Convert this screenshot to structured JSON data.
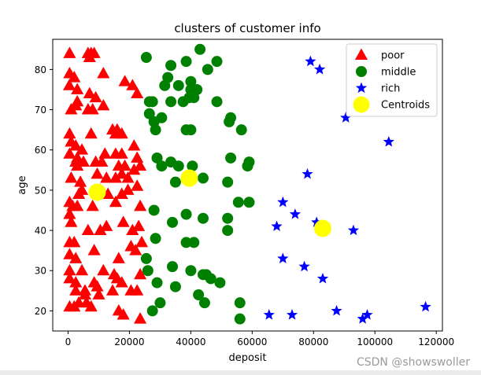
{
  "chart_data": {
    "type": "scatter",
    "title": "clusters of customer info",
    "xlabel": "deposit",
    "ylabel": "age",
    "xlim": [
      -5000,
      122000
    ],
    "ylim": [
      15,
      87.5
    ],
    "xticks": [
      0,
      20000,
      40000,
      60000,
      80000,
      100000,
      120000
    ],
    "yticks": [
      20,
      30,
      40,
      50,
      60,
      70,
      80
    ],
    "legend_position": "top-right",
    "grid": false,
    "series": [
      {
        "name": "poor",
        "color": "#ff0000",
        "marker": "triangle",
        "points": [
          [
            500,
            84
          ],
          [
            6500,
            84
          ],
          [
            7500,
            84
          ],
          [
            8500,
            84
          ],
          [
            7000,
            83
          ],
          [
            500,
            79
          ],
          [
            2000,
            78
          ],
          [
            11500,
            79
          ],
          [
            400,
            76
          ],
          [
            3000,
            75
          ],
          [
            7000,
            74
          ],
          [
            9000,
            73
          ],
          [
            3000,
            72
          ],
          [
            2500,
            71
          ],
          [
            1000,
            70
          ],
          [
            6500,
            70
          ],
          [
            8000,
            70
          ],
          [
            11500,
            71
          ],
          [
            18500,
            77
          ],
          [
            21000,
            76
          ],
          [
            22500,
            74
          ],
          [
            500,
            64
          ],
          [
            7500,
            64
          ],
          [
            14500,
            65
          ],
          [
            16000,
            65
          ],
          [
            15500,
            64
          ],
          [
            17500,
            64
          ],
          [
            1000,
            62
          ],
          [
            2500,
            61
          ],
          [
            4500,
            60
          ],
          [
            500,
            59
          ],
          [
            3000,
            58
          ],
          [
            2500,
            57
          ],
          [
            5000,
            57
          ],
          [
            3000,
            56
          ],
          [
            9000,
            57
          ],
          [
            11000,
            57
          ],
          [
            12000,
            59
          ],
          [
            15500,
            59
          ],
          [
            17500,
            59
          ],
          [
            21500,
            61
          ],
          [
            22500,
            58
          ],
          [
            16500,
            56
          ],
          [
            18500,
            56
          ],
          [
            21500,
            55
          ],
          [
            23500,
            56
          ],
          [
            1000,
            53
          ],
          [
            4000,
            52
          ],
          [
            9500,
            54
          ],
          [
            12500,
            53
          ],
          [
            15500,
            53
          ],
          [
            17500,
            54
          ],
          [
            19500,
            53
          ],
          [
            3500,
            49
          ],
          [
            4500,
            50
          ],
          [
            10500,
            50
          ],
          [
            13000,
            49
          ],
          [
            17500,
            49
          ],
          [
            19500,
            50
          ],
          [
            22500,
            51
          ],
          [
            500,
            47
          ],
          [
            1500,
            46
          ],
          [
            3000,
            46
          ],
          [
            500,
            44
          ],
          [
            8000,
            46
          ],
          [
            15500,
            47
          ],
          [
            23500,
            46
          ],
          [
            1000,
            42
          ],
          [
            6500,
            40
          ],
          [
            10500,
            40
          ],
          [
            12500,
            41
          ],
          [
            18000,
            42
          ],
          [
            21000,
            40
          ],
          [
            23000,
            41
          ],
          [
            500,
            37
          ],
          [
            2000,
            37
          ],
          [
            500,
            34
          ],
          [
            2500,
            33
          ],
          [
            8500,
            35
          ],
          [
            16500,
            33
          ],
          [
            20500,
            36
          ],
          [
            24000,
            37
          ],
          [
            22000,
            35
          ],
          [
            500,
            30
          ],
          [
            4500,
            30
          ],
          [
            11500,
            30
          ],
          [
            15000,
            29
          ],
          [
            500,
            28
          ],
          [
            2500,
            27
          ],
          [
            8500,
            27
          ],
          [
            16000,
            28
          ],
          [
            23500,
            29
          ],
          [
            2500,
            25
          ],
          [
            5500,
            25
          ],
          [
            9500,
            26
          ],
          [
            10000,
            24
          ],
          [
            14500,
            25
          ],
          [
            17500,
            27
          ],
          [
            20500,
            25
          ],
          [
            22500,
            25
          ],
          [
            500,
            21
          ],
          [
            2000,
            21
          ],
          [
            3500,
            22
          ],
          [
            5500,
            24
          ],
          [
            6000,
            22
          ],
          [
            7500,
            21
          ],
          [
            16500,
            20
          ],
          [
            18000,
            19
          ],
          [
            23500,
            18
          ]
        ]
      },
      {
        "name": "middle",
        "color": "#008000",
        "marker": "circle",
        "points": [
          [
            25500,
            83
          ],
          [
            33500,
            81
          ],
          [
            38500,
            82
          ],
          [
            43000,
            85
          ],
          [
            48500,
            82
          ],
          [
            45500,
            80
          ],
          [
            31500,
            76
          ],
          [
            32500,
            78
          ],
          [
            36000,
            76
          ],
          [
            40000,
            77
          ],
          [
            40000,
            75
          ],
          [
            42000,
            75
          ],
          [
            26500,
            72
          ],
          [
            27500,
            72
          ],
          [
            33500,
            72
          ],
          [
            37500,
            72
          ],
          [
            39500,
            73
          ],
          [
            41000,
            73
          ],
          [
            48500,
            72
          ],
          [
            26500,
            69
          ],
          [
            28000,
            67
          ],
          [
            30500,
            68
          ],
          [
            28500,
            65
          ],
          [
            38500,
            65
          ],
          [
            40000,
            65
          ],
          [
            52500,
            67
          ],
          [
            53000,
            68
          ],
          [
            56500,
            65
          ],
          [
            29000,
            58
          ],
          [
            30500,
            56
          ],
          [
            33500,
            57
          ],
          [
            36000,
            56
          ],
          [
            40500,
            56
          ],
          [
            53000,
            58
          ],
          [
            59000,
            57
          ],
          [
            58500,
            56
          ],
          [
            35000,
            52
          ],
          [
            44000,
            53
          ],
          [
            52000,
            52
          ],
          [
            28000,
            45
          ],
          [
            38500,
            44
          ],
          [
            44000,
            43
          ],
          [
            55500,
            47
          ],
          [
            59000,
            47
          ],
          [
            52000,
            43
          ],
          [
            52000,
            40
          ],
          [
            34000,
            42
          ],
          [
            28500,
            38
          ],
          [
            38500,
            37
          ],
          [
            41000,
            37
          ],
          [
            25500,
            33
          ],
          [
            34000,
            31
          ],
          [
            40000,
            30
          ],
          [
            44000,
            29
          ],
          [
            45000,
            29
          ],
          [
            46500,
            28
          ],
          [
            49500,
            27
          ],
          [
            26000,
            30
          ],
          [
            29000,
            27
          ],
          [
            35000,
            26
          ],
          [
            42500,
            24
          ],
          [
            44500,
            22
          ],
          [
            30000,
            22
          ],
          [
            27500,
            20
          ],
          [
            56000,
            22
          ],
          [
            56000,
            18
          ]
        ]
      },
      {
        "name": "rich",
        "color": "#0000ff",
        "marker": "star",
        "points": [
          [
            79000,
            82
          ],
          [
            82000,
            80
          ],
          [
            90500,
            68
          ],
          [
            104500,
            62
          ],
          [
            78000,
            54
          ],
          [
            70000,
            47
          ],
          [
            74000,
            44
          ],
          [
            81000,
            42
          ],
          [
            68000,
            41
          ],
          [
            93000,
            40
          ],
          [
            70000,
            33
          ],
          [
            77000,
            31
          ],
          [
            83000,
            28
          ],
          [
            65500,
            19
          ],
          [
            73000,
            19
          ],
          [
            87500,
            20
          ],
          [
            96000,
            18
          ],
          [
            97500,
            19
          ],
          [
            116500,
            21
          ]
        ]
      },
      {
        "name": "Centroids",
        "color": "#ffff00",
        "marker": "big-circle",
        "points": [
          [
            9500,
            49.5
          ],
          [
            39500,
            53
          ],
          [
            83000,
            40.5
          ]
        ]
      }
    ]
  },
  "watermark": "CSDN @showswoller"
}
